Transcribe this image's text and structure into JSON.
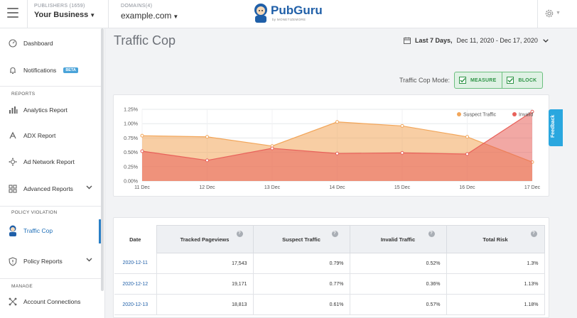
{
  "topbar": {
    "publishers_label": "PUBLISHERS (1659)",
    "publisher_value": "Your Business",
    "domains_label": "DOMAINS(4)",
    "domain_value": "example.com",
    "logo_text_a": "Pub",
    "logo_text_b": "Guru",
    "logo_by": "by MONETIZEMORE"
  },
  "sidebar": {
    "dashboard": "Dashboard",
    "notifications": "Notifications",
    "beta": "BETA",
    "section_reports": "REPORTS",
    "analytics": "Analytics Report",
    "adx": "ADX Report",
    "ad_network": "Ad Network Report",
    "advanced": "Advanced Reports",
    "section_policy": "POLICY VIOLATION",
    "traffic_cop": "Traffic Cop",
    "policy_reports": "Policy Reports",
    "section_manage": "MANAGE",
    "account_connections": "Account Connections"
  },
  "page": {
    "title": "Traffic Cop",
    "range_label": "Last 7 Days,",
    "range_dates": "Dec 11, 2020 - Dec 17, 2020",
    "mode_label": "Traffic Cop Mode:",
    "mode_measure": "MEASURE",
    "mode_block": "BLOCK",
    "feedback": "Feedback"
  },
  "colors": {
    "suspect": "#f2a65a",
    "invalid": "#e8615a",
    "accent": "#2a7fc6",
    "mode_green": "#2f9447"
  },
  "chart_data": {
    "type": "area",
    "categories": [
      "11 Dec",
      "12 Dec",
      "13 Dec",
      "14 Dec",
      "15 Dec",
      "16 Dec",
      "17 Dec"
    ],
    "series": [
      {
        "name": "Suspect Traffic",
        "values": [
          0.79,
          0.77,
          0.61,
          1.03,
          0.96,
          0.77,
          0.33
        ]
      },
      {
        "name": "Invalid",
        "values": [
          0.52,
          0.36,
          0.57,
          0.48,
          0.49,
          0.47,
          1.21
        ]
      }
    ],
    "y_ticks": [
      "1.25%",
      "1.00%",
      "0.75%",
      "0.50%",
      "0.25%",
      "0.00%"
    ],
    "ylim": [
      0,
      1.25
    ],
    "legend": "top-right",
    "grid": true
  },
  "table": {
    "headers": [
      "Date",
      "Tracked Pageviews",
      "Suspect Traffic",
      "Invalid Traffic",
      "Total Risk"
    ],
    "help_glyph": "?",
    "rows": [
      [
        "2020-12-11",
        "17,543",
        "0.79%",
        "0.52%",
        "1.3%"
      ],
      [
        "2020-12-12",
        "19,171",
        "0.77%",
        "0.36%",
        "1.13%"
      ],
      [
        "2020-12-13",
        "18,813",
        "0.61%",
        "0.57%",
        "1.18%"
      ]
    ]
  }
}
